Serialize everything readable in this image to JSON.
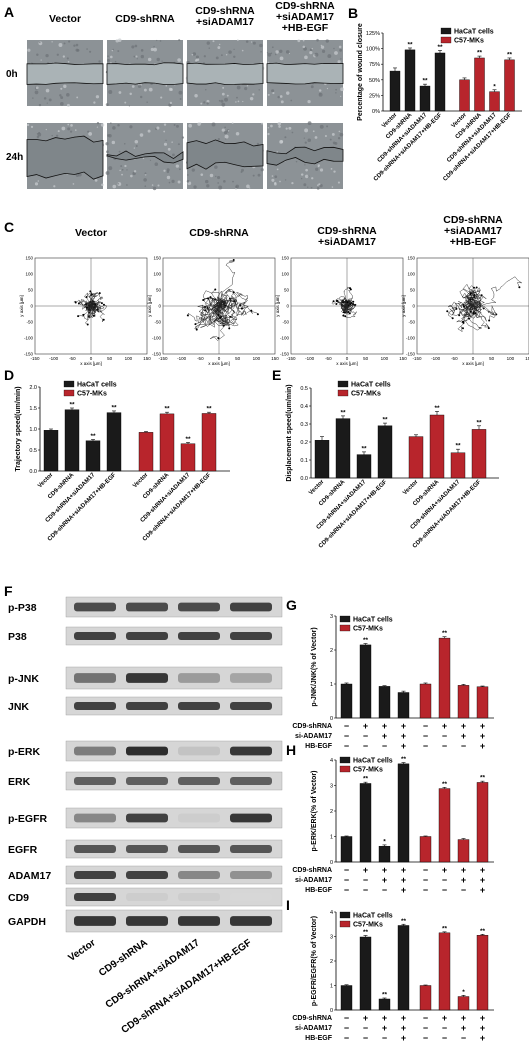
{
  "panel_labels": {
    "a": "A",
    "b": "B",
    "c": "C",
    "d": "D",
    "e": "E",
    "f": "F",
    "g": "G",
    "h": "H",
    "i": "I"
  },
  "colors": {
    "hacat": "#1a1a1a",
    "c57": "#b8252c"
  },
  "panel_a": {
    "conditions": [
      "Vector",
      "CD9-shRNA",
      "CD9-shRNA\n+siADAM17",
      "CD9-shRNA\n+siADAM17\n+HB-EGF"
    ],
    "timepoints": [
      "0h",
      "24h"
    ]
  },
  "panel_c": {
    "conditions": [
      "Vector",
      "CD9-shRNA",
      "CD9-shRNA\n+siADAM17",
      "CD9-shRNA\n+siADAM17\n+HB-EGF"
    ],
    "x_ticks": [
      "-150",
      "-100",
      "-50",
      "0",
      "50",
      "100",
      "150"
    ],
    "y_ticks": [
      "150",
      "100",
      "50",
      "0",
      "-50",
      "-100",
      "-150"
    ],
    "x_axis_label": "x axis [µm]",
    "y_axis_label": "y axis [µm]"
  },
  "legend": {
    "hacat": "HaCaT cells",
    "c57": "C57-MKs"
  },
  "categories": [
    "Vector",
    "CD9-shRNA",
    "CD9-shRNA+siADAM17",
    "CD9-shRNA+siADAM17+HB-EGF"
  ],
  "treatment_rows": [
    {
      "label": "CD9-shRNA",
      "signs": [
        "−",
        "+",
        "+",
        "+"
      ]
    },
    {
      "label": "si-ADAM17",
      "signs": [
        "−",
        "−",
        "+",
        "+"
      ]
    },
    {
      "label": "HB-EGF",
      "signs": [
        "−",
        "−",
        "−",
        "+"
      ]
    }
  ],
  "panel_f": {
    "bands": [
      "p-P38",
      "P38",
      "p-JNK",
      "JNK",
      "p-ERK",
      "ERK",
      "p-EGFR",
      "EGFR",
      "ADAM17",
      "CD9",
      "GAPDH"
    ],
    "lanes": [
      "Vector",
      "CD9-shRNA",
      "CD9-shRNA+siADAM17",
      "CD9-shRNA+siADAM17+HB-EGF"
    ]
  },
  "chart_data": [
    {
      "panel": "B",
      "type": "bar",
      "ylabel": "Percentage of wound closure",
      "yticks": [
        "0%",
        "25%",
        "50%",
        "75%",
        "100%",
        "125%"
      ],
      "ylim": [
        0,
        1.25
      ],
      "categories": [
        "Vector",
        "CD9-shRNA",
        "CD9-shRNA+siADAM17",
        "CD9-shRNA+siADAM17+HB-EGF"
      ],
      "series": [
        {
          "name": "HaCaT cells",
          "values": [
            0.64,
            0.98,
            0.4,
            0.93
          ],
          "errors": [
            0.05,
            0.03,
            0.03,
            0.04
          ],
          "sig": [
            "",
            "**",
            "**",
            "**"
          ]
        },
        {
          "name": "C57-MKs",
          "values": [
            0.5,
            0.85,
            0.31,
            0.82
          ],
          "errors": [
            0.03,
            0.03,
            0.03,
            0.03
          ],
          "sig": [
            "",
            "**",
            "*",
            "**"
          ]
        }
      ]
    },
    {
      "panel": "D",
      "type": "bar",
      "ylabel": "Trajectory speed(um/min)",
      "yticks": [
        "0.0",
        "0.5",
        "1.0",
        "1.5",
        "2.0"
      ],
      "ylim": [
        0,
        2.0
      ],
      "categories": [
        "Vector",
        "CD9-shRNA",
        "CD9-shRNA+siADAM17",
        "CD9-shRNA+siADAM17+HB-EGF"
      ],
      "series": [
        {
          "name": "HaCaT cells",
          "values": [
            0.97,
            1.46,
            0.72,
            1.39
          ],
          "errors": [
            0.03,
            0.04,
            0.03,
            0.04
          ],
          "sig": [
            "",
            "**",
            "**",
            "**"
          ]
        },
        {
          "name": "C57-MKs",
          "values": [
            0.92,
            1.36,
            0.65,
            1.37
          ],
          "errors": [
            0.02,
            0.04,
            0.03,
            0.03
          ],
          "sig": [
            "",
            "**",
            "**",
            "**"
          ]
        }
      ]
    },
    {
      "panel": "E",
      "type": "bar",
      "ylabel": "Displacement speed(um/min)",
      "yticks": [
        "0.0",
        "0.1",
        "0.2",
        "0.3",
        "0.4",
        "0.5"
      ],
      "ylim": [
        0,
        0.5
      ],
      "categories": [
        "Vector",
        "CD9-shRNA",
        "CD9-shRNA+siADAM17",
        "CD9-shRNA+siADAM17+HB-EGF"
      ],
      "series": [
        {
          "name": "HaCaT cells",
          "values": [
            0.21,
            0.33,
            0.13,
            0.29
          ],
          "errors": [
            0.02,
            0.015,
            0.015,
            0.015
          ],
          "sig": [
            "",
            "**",
            "**",
            "**"
          ]
        },
        {
          "name": "C57-MKs",
          "values": [
            0.23,
            0.35,
            0.14,
            0.27
          ],
          "errors": [
            0.01,
            0.02,
            0.02,
            0.02
          ],
          "sig": [
            "",
            "**",
            "**",
            "**"
          ]
        }
      ]
    },
    {
      "panel": "G",
      "type": "bar",
      "ylabel": "p-JNK/JNK(% of Vector)",
      "yticks": [
        "0",
        "1",
        "2",
        "3"
      ],
      "ylim": [
        0,
        3
      ],
      "series": [
        {
          "name": "HaCaT cells",
          "values": [
            1.0,
            2.15,
            0.93,
            0.75
          ],
          "errors": [
            0.03,
            0.04,
            0.02,
            0.04
          ],
          "sig": [
            "",
            "**",
            "",
            ""
          ]
        },
        {
          "name": "C57-MKs",
          "values": [
            1.0,
            2.35,
            0.96,
            0.92
          ],
          "errors": [
            0.03,
            0.04,
            0.03,
            0.02
          ],
          "sig": [
            "",
            "**",
            "",
            ""
          ]
        }
      ]
    },
    {
      "panel": "H",
      "type": "bar",
      "ylabel": "p-ERK/ERK(% of Vector)",
      "yticks": [
        "0",
        "1",
        "2",
        "3",
        "4"
      ],
      "ylim": [
        0,
        4
      ],
      "series": [
        {
          "name": "HaCaT cells",
          "values": [
            1.0,
            3.08,
            0.62,
            3.85
          ],
          "errors": [
            0.02,
            0.05,
            0.05,
            0.05
          ],
          "sig": [
            "",
            "**",
            "*",
            "**"
          ]
        },
        {
          "name": "C57-MKs",
          "values": [
            1.0,
            2.88,
            0.88,
            3.12
          ],
          "errors": [
            0.02,
            0.05,
            0.04,
            0.05
          ],
          "sig": [
            "",
            "**",
            "",
            "**"
          ]
        }
      ]
    },
    {
      "panel": "I",
      "type": "bar",
      "ylabel": "p-EGFR/EGFR(% of Vector)",
      "yticks": [
        "0",
        "1",
        "2",
        "3",
        "4"
      ],
      "ylim": [
        0,
        4
      ],
      "series": [
        {
          "name": "HaCaT cells",
          "values": [
            1.0,
            2.98,
            0.45,
            3.45
          ],
          "errors": [
            0.03,
            0.06,
            0.04,
            0.05
          ],
          "sig": [
            "",
            "**",
            "**",
            "**"
          ]
        },
        {
          "name": "C57-MKs",
          "values": [
            1.0,
            3.15,
            0.55,
            3.05
          ],
          "errors": [
            0.02,
            0.04,
            0.05,
            0.04
          ],
          "sig": [
            "",
            "**",
            "*",
            "**"
          ]
        }
      ]
    }
  ]
}
